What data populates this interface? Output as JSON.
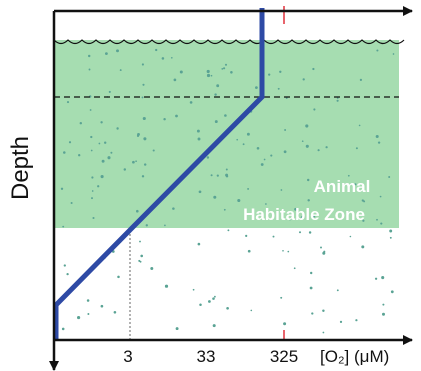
{
  "labels": {
    "y_axis": "Depth",
    "zone_line1": "Animal",
    "zone_line2": "Habitable Zone"
  },
  "x_axis": {
    "ticks": [
      "3",
      "33",
      "325"
    ],
    "unit_label": "[O₂] (μM)"
  },
  "colors": {
    "habitable_zone": "#a6ddb1",
    "oxygen_profile": "#2e4aa5",
    "particles": "#5aa394",
    "surface_tick": "#e0303a",
    "axis": "#111111"
  }
}
